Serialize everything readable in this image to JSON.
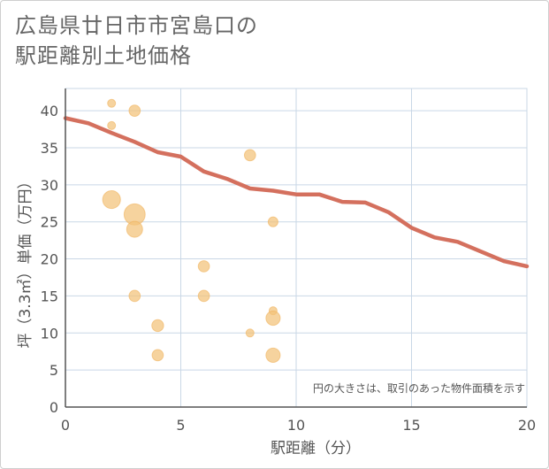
{
  "title": {
    "line1": "広島県廿日市市宮島口の",
    "line2": "駅距離別土地価格"
  },
  "chart_data": {
    "type": "scatter",
    "title": "広島県廿日市市宮島口の駅距離別土地価格",
    "xlabel": "駅距離（分）",
    "ylabel": "坪（3.3㎡）単価（万円）",
    "xlim": [
      0,
      20
    ],
    "ylim": [
      0,
      43
    ],
    "x_ticks": [
      0,
      5,
      10,
      15,
      20
    ],
    "y_ticks": [
      0,
      5,
      10,
      15,
      20,
      25,
      30,
      35,
      40
    ],
    "grid": true,
    "note": "円の大きさは、取引のあった物件面積を示す",
    "colors": {
      "bubble_fill": "#f3c278",
      "bubble_stroke": "#f0b35c",
      "trend": "#d4705e",
      "grid": "#c9d7e6",
      "axis": "#555555"
    },
    "bubbles": [
      {
        "x": 2,
        "y": 41,
        "size": 1
      },
      {
        "x": 3,
        "y": 40,
        "size": 2
      },
      {
        "x": 2,
        "y": 38,
        "size": 1
      },
      {
        "x": 8,
        "y": 34,
        "size": 2
      },
      {
        "x": 2,
        "y": 28,
        "size": 5
      },
      {
        "x": 3,
        "y": 26,
        "size": 7
      },
      {
        "x": 3,
        "y": 24,
        "size": 4
      },
      {
        "x": 9,
        "y": 25,
        "size": 1.5
      },
      {
        "x": 6,
        "y": 19,
        "size": 2
      },
      {
        "x": 3,
        "y": 15,
        "size": 2
      },
      {
        "x": 6,
        "y": 15,
        "size": 2
      },
      {
        "x": 9,
        "y": 13,
        "size": 1
      },
      {
        "x": 9,
        "y": 12,
        "size": 3.2
      },
      {
        "x": 4,
        "y": 11,
        "size": 2.2
      },
      {
        "x": 8,
        "y": 10,
        "size": 1
      },
      {
        "x": 4,
        "y": 7,
        "size": 2
      },
      {
        "x": 9,
        "y": 7,
        "size": 3.2
      }
    ],
    "trend": {
      "x": [
        0,
        1,
        2,
        3,
        4,
        5,
        6,
        7,
        8,
        9,
        10,
        11,
        12,
        13,
        14,
        15,
        16,
        17,
        18,
        19,
        20
      ],
      "y": [
        39.0,
        38.3,
        37.0,
        35.8,
        34.4,
        33.8,
        31.8,
        30.8,
        29.5,
        29.2,
        28.7,
        28.7,
        27.7,
        27.6,
        26.3,
        24.2,
        22.9,
        22.3,
        21.0,
        19.7,
        19.0
      ]
    }
  }
}
